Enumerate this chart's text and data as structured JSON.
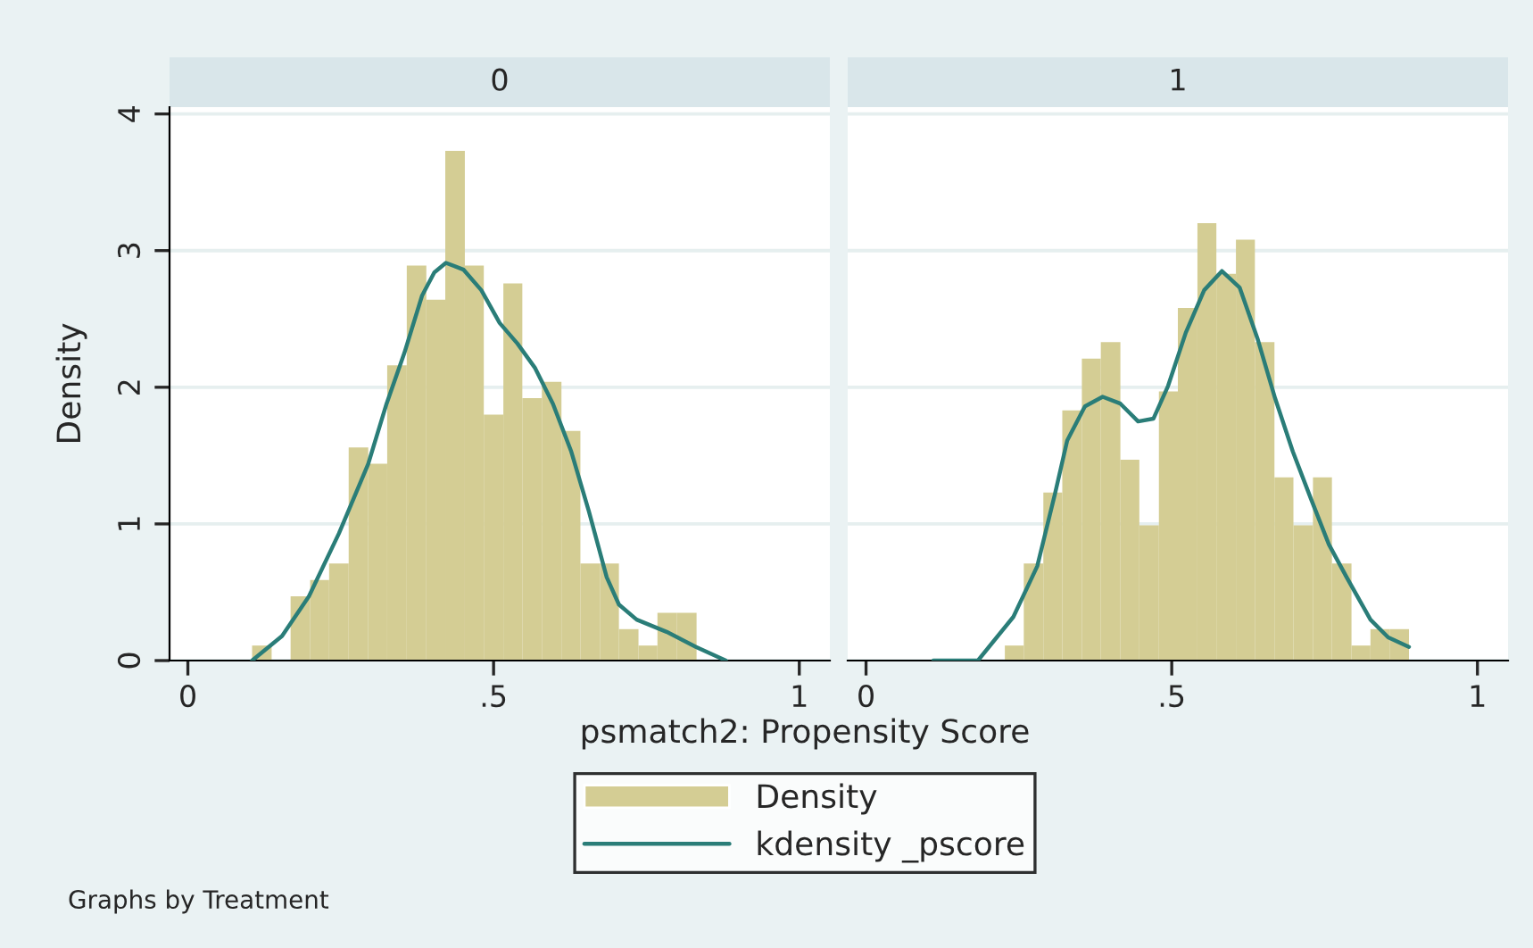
{
  "chart_data": [
    {
      "type": "histogram",
      "title": "0",
      "ylabel": "Density",
      "xlabel": "psmatch2: Propensity Score",
      "legend": "bottom",
      "grid": "y",
      "xlim": [
        -0.03,
        1.05
      ],
      "xticks": [
        0,
        {
          "value": 0.5,
          "label": ".5"
        },
        1
      ],
      "ylim": [
        0,
        4.05
      ],
      "yticks": [
        0,
        1,
        2,
        3,
        4
      ],
      "annotations": [
        "Graphs by Treatment"
      ],
      "series": [
        {
          "name": "Density",
          "color": "#d4cd94",
          "bins": [
            0.105,
            0.137,
            0.168,
            0.2,
            0.231,
            0.263,
            0.295,
            0.326,
            0.358,
            0.39,
            0.421,
            0.453,
            0.484,
            0.516,
            0.547,
            0.579,
            0.611,
            0.642,
            0.674,
            0.705,
            0.737,
            0.768,
            0.8,
            0.832
          ],
          "values": [
            0.11,
            0,
            0.47,
            0.59,
            0.71,
            1.56,
            1.44,
            2.16,
            2.89,
            2.64,
            3.73,
            2.89,
            1.8,
            2.76,
            1.92,
            2.04,
            1.68,
            0.71,
            0.71,
            0.23,
            0.11,
            0.35,
            0.35
          ]
        },
        {
          "type": "line",
          "name": "kdensity _pscore",
          "color": "#2a7d78",
          "x": [
            0.105,
            0.154,
            0.198,
            0.247,
            0.295,
            0.325,
            0.354,
            0.383,
            0.403,
            0.422,
            0.451,
            0.48,
            0.51,
            0.539,
            0.568,
            0.597,
            0.627,
            0.656,
            0.685,
            0.705,
            0.734,
            0.783,
            0.831,
            0.88
          ],
          "values": [
            0,
            0.18,
            0.47,
            0.93,
            1.44,
            1.88,
            2.25,
            2.67,
            2.84,
            2.91,
            2.86,
            2.71,
            2.47,
            2.32,
            2.14,
            1.88,
            1.53,
            1.09,
            0.61,
            0.41,
            0.3,
            0.21,
            0.1,
            0
          ]
        }
      ]
    },
    {
      "type": "histogram",
      "title": "1",
      "grid": "y",
      "tick_labels": "x",
      "xlim": [
        -0.03,
        1.05
      ],
      "xticks": [
        0,
        {
          "value": 0.5,
          "label": ".5"
        },
        1
      ],
      "ylim": [
        0,
        4.05
      ],
      "yticks": [
        0,
        1,
        2,
        3,
        4
      ],
      "series": [
        {
          "color": "#d4cd94",
          "bins": [
            0.227,
            0.258,
            0.29,
            0.321,
            0.353,
            0.384,
            0.416,
            0.447,
            0.479,
            0.51,
            0.542,
            0.573,
            0.605,
            0.636,
            0.668,
            0.699,
            0.731,
            0.762,
            0.794,
            0.825,
            0.857,
            0.888
          ],
          "values": [
            0.11,
            0.71,
            1.23,
            1.83,
            2.21,
            2.33,
            1.47,
            0.99,
            1.97,
            2.58,
            3.2,
            2.83,
            3.08,
            2.33,
            1.34,
            0.99,
            1.34,
            0.71,
            0.11,
            0.23,
            0.23
          ]
        },
        {
          "type": "line",
          "color": "#2a7d78",
          "x": [
            0.11,
            0.183,
            0.241,
            0.28,
            0.309,
            0.329,
            0.358,
            0.387,
            0.416,
            0.445,
            0.47,
            0.494,
            0.523,
            0.553,
            0.582,
            0.611,
            0.64,
            0.669,
            0.698,
            0.728,
            0.757,
            0.786,
            0.825,
            0.854,
            0.888
          ],
          "values": [
            0,
            0,
            0.32,
            0.69,
            1.22,
            1.61,
            1.86,
            1.93,
            1.88,
            1.75,
            1.77,
            2.01,
            2.4,
            2.71,
            2.85,
            2.73,
            2.36,
            1.92,
            1.53,
            1.18,
            0.85,
            0.61,
            0.3,
            0.17,
            0.1
          ]
        }
      ]
    }
  ]
}
